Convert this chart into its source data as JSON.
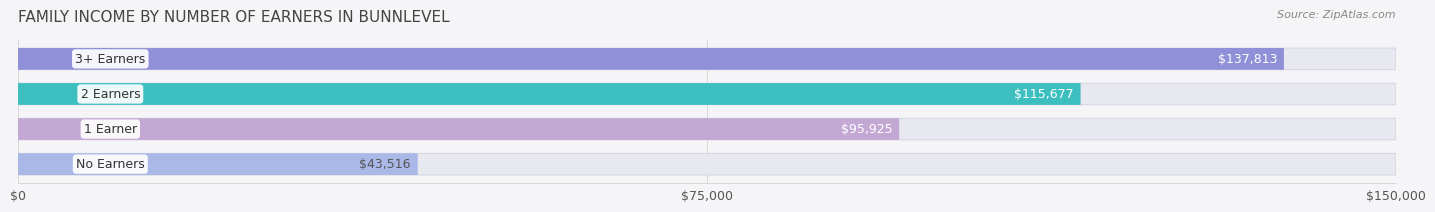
{
  "title": "FAMILY INCOME BY NUMBER OF EARNERS IN BUNNLEVEL",
  "source": "Source: ZipAtlas.com",
  "categories": [
    "No Earners",
    "1 Earner",
    "2 Earners",
    "3+ Earners"
  ],
  "values": [
    43516,
    95925,
    115677,
    137813
  ],
  "bar_colors": [
    "#aab8e8",
    "#c4a8d4",
    "#3dbfbf",
    "#9090d8"
  ],
  "bar_bg_color": "#e8e8f0",
  "label_colors": [
    "#555555",
    "#ffffff",
    "#ffffff",
    "#ffffff"
  ],
  "xlim": [
    0,
    150000
  ],
  "xticks": [
    0,
    75000,
    150000
  ],
  "xtick_labels": [
    "$0",
    "$75,000",
    "$150,000"
  ],
  "title_fontsize": 11,
  "source_fontsize": 8,
  "tick_fontsize": 9,
  "bar_label_fontsize": 9,
  "category_fontsize": 9,
  "figure_bg": "#f5f5f8",
  "bar_bg_alpha": 1.0
}
